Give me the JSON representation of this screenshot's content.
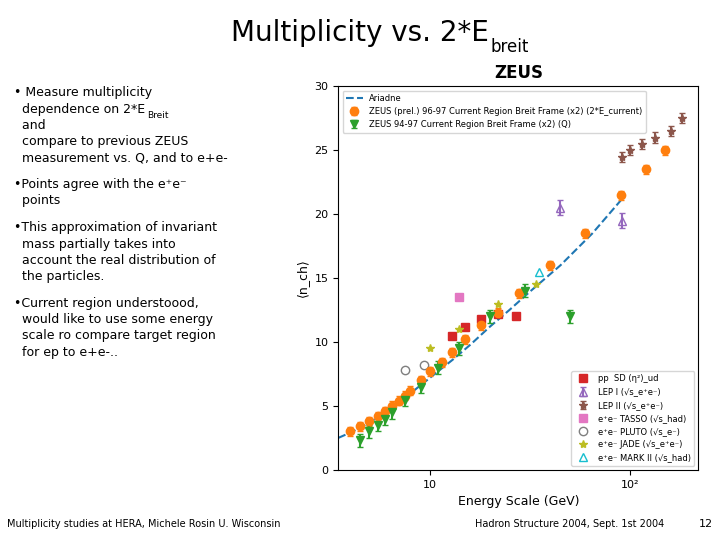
{
  "chart_data": {
    "type": "scatter",
    "title": "ZEUS",
    "xlabel": "Energy Scale (GeV)",
    "ylabel": "⟨n_ch⟩",
    "log": "x",
    "xlim": [
      3.5,
      220
    ],
    "xticks": [
      10,
      {
        "value": 100,
        "label": "10²"
      }
    ],
    "ylim": [
      0,
      30
    ],
    "yticks": [
      0,
      5,
      10,
      15,
      20,
      25,
      30
    ],
    "grid": false,
    "annotations": {
      "header": [
        "Multiplicity vs. 2*E",
        "breit"
      ],
      "bullets": [
        [
          "• Measure multiplicity\n  dependence on 2*E",
          "Breit",
          "  and\n  compare to previous ZEUS\n  measurement vs. Q, and to e+e-"
        ],
        [
          "•Points agree with the e⁺e⁻\n  points"
        ],
        [
          "•This approximation of invariant\n  mass partially takes into\n  account the real distribution of\n  the particles."
        ],
        [
          "•Current region understoood,\n  would like to use some energy\n  scale ro compare target region\n  for ep to e+e-.."
        ]
      ],
      "footer": [
        "Multiplicity studies at HERA, Michele Rosin U. Wisconsin",
        "Hadron Structure 2004, Sept. 1st 2004",
        "12"
      ]
    },
    "series": [
      {
        "name": "Ariadne",
        "type": "line",
        "line_style": "dashed",
        "legend": "upper left",
        "x": [
          3.5,
          4.0,
          4.5,
          5.0,
          5.5,
          6.0,
          6.5,
          7.0,
          7.5,
          8.5,
          9.5,
          11,
          13,
          16,
          20,
          25,
          32,
          45,
          65,
          95
        ],
        "values": [
          2.5,
          2.9,
          3.3,
          3.7,
          4.1,
          4.5,
          4.9,
          5.3,
          5.6,
          6.3,
          6.9,
          7.7,
          8.6,
          9.8,
          11.2,
          12.5,
          14.0,
          16.0,
          18.5,
          21.5
        ]
      },
      {
        "name": "ZEUS (prel.) 96-97 Current Region Breit Frame (x2) (2*E_current)",
        "type": "scatter",
        "marker": "circle",
        "legend": "upper left",
        "x": [
          4.0,
          4.5,
          5.0,
          5.5,
          6.0,
          6.5,
          7.0,
          7.5,
          8.0,
          9.0,
          10.0,
          11.5,
          13.0,
          15.0,
          18.0,
          22.0,
          28.0,
          40.0,
          60.0,
          90.0,
          120.0,
          150.0
        ],
        "values": [
          3.0,
          3.4,
          3.8,
          4.2,
          4.6,
          5.0,
          5.4,
          5.8,
          6.2,
          7.0,
          7.7,
          8.4,
          9.2,
          10.2,
          11.3,
          12.3,
          13.8,
          16.0,
          18.5,
          21.5,
          23.5,
          25.0
        ],
        "yerr": 0.35
      },
      {
        "name": "ZEUS 94-97 Current Region Breit Frame (x2) (Q)",
        "type": "scatter",
        "marker": "triangle_down",
        "legend": "upper left",
        "x": [
          4.5,
          5.0,
          5.5,
          6.0,
          6.5,
          7.5,
          9.0,
          11.0,
          14.0,
          20.0,
          30.0,
          50.0
        ],
        "values": [
          2.3,
          3.0,
          3.5,
          4.0,
          4.5,
          5.5,
          6.5,
          8.0,
          9.5,
          12.0,
          14.0,
          12.0
        ],
        "yerr": 0.5
      },
      {
        "name": "pp  SD (η²)_ud",
        "type": "scatter",
        "marker": "square",
        "legend": "lower right",
        "x": [
          13.0,
          15.0,
          18.0,
          22.0,
          27.0
        ],
        "values": [
          10.5,
          11.2,
          11.8,
          12.2,
          12.0
        ]
      },
      {
        "name": "LEP I (√s_e⁺e⁻)",
        "type": "scatter",
        "marker": "triangle_up_open",
        "legend": "lower right",
        "x": [
          45.0,
          91.0
        ],
        "values": [
          20.5,
          19.5
        ],
        "yerr": 0.6
      },
      {
        "name": "LEP II (√s_e⁺e⁻)",
        "type": "scatter",
        "marker": "star",
        "legend": "lower right",
        "x": [
          91.0,
          100.0,
          115.0,
          133.0,
          161.0,
          183.0
        ],
        "values": [
          24.5,
          25.0,
          25.5,
          26.0,
          26.5,
          27.5
        ],
        "yerr": 0.4
      },
      {
        "name": "e⁺e⁻ TASSO (√s_had)",
        "type": "scatter",
        "marker": "square",
        "legend": "lower right",
        "x": [
          14.0
        ],
        "values": [
          13.5
        ]
      },
      {
        "name": "e⁺e⁻ PLUTO (√s_e⁻)",
        "type": "scatter",
        "marker": "circle_open",
        "legend": "lower right",
        "x": [
          7.5,
          9.4
        ],
        "values": [
          7.8,
          8.2
        ]
      },
      {
        "name": "e⁺e⁻ JADE (√s_e⁺e⁻)",
        "type": "scatter",
        "marker": "star",
        "legend": "lower right",
        "x": [
          10.0,
          14.0,
          22.0,
          34.0
        ],
        "values": [
          9.5,
          11.0,
          13.0,
          14.5
        ]
      },
      {
        "name": "e⁺e⁻ MARK II (√s_had)",
        "type": "scatter",
        "marker": "triangle_up_open",
        "legend": "lower right",
        "x": [
          29.0,
          35.0
        ],
        "values": [
          14.0,
          15.5
        ]
      }
    ]
  }
}
